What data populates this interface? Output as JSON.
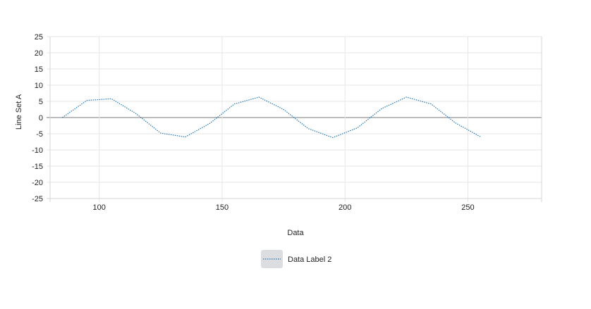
{
  "chart_data": {
    "type": "line",
    "xlabel": "Data",
    "ylabel": "Line Set A",
    "xlim": [
      80,
      280
    ],
    "ylim": [
      -25,
      25
    ],
    "xticks": [
      100,
      150,
      200,
      250
    ],
    "yticks": [
      25,
      20,
      15,
      10,
      5,
      0,
      -5,
      -10,
      -15,
      -20,
      -25
    ],
    "grid": true,
    "legend_position": "bottom",
    "series": [
      {
        "name": "Data Label 2",
        "color": "#1f77b4",
        "line_style": "dotted",
        "x": [
          85,
          95,
          105,
          115,
          125,
          135,
          145,
          155,
          165,
          175,
          185,
          195,
          205,
          215,
          225,
          235,
          245,
          255
        ],
        "y": [
          0,
          5.3,
          5.8,
          1.2,
          -4.8,
          -6.0,
          -1.8,
          4.2,
          6.3,
          2.5,
          -3.4,
          -6.2,
          -3.2,
          2.8,
          6.3,
          4.2,
          -1.7,
          -5.9
        ]
      }
    ]
  }
}
